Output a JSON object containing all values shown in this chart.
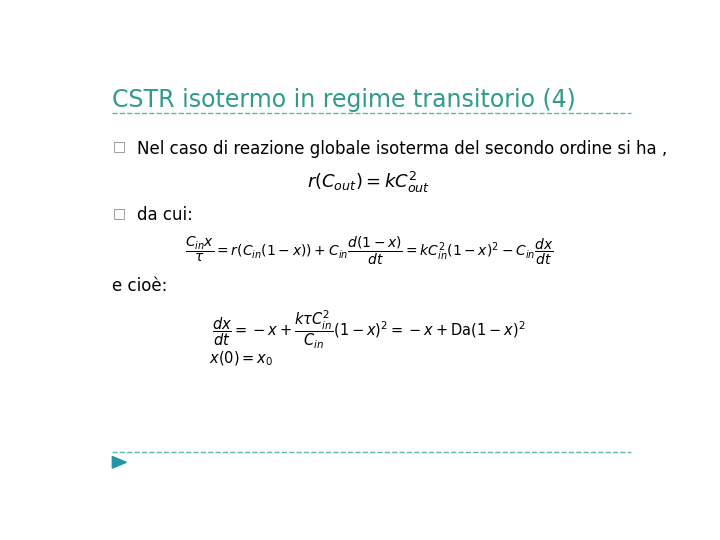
{
  "title": "CSTR isotermo in regime transitorio (4)",
  "title_color": "#2E9B8B",
  "background_color": "#ffffff",
  "line_color": "#5BB8AD",
  "bullet_color": "#888888",
  "text_color": "#000000",
  "arrow_color": "#2196A6",
  "bullet1_text": "Nel caso di reazione globale isoterma del secondo ordine si ha ,",
  "bullet2_text": "da cui:",
  "text3": "e cioè:",
  "formula1": "$r\\left(C_{out}\\right)=kC_{out}^{2}$",
  "formula2": "$\\dfrac{C_{in}x}{\\tau}=r\\left(C_{in}\\left(1-x\\right)\\right)+C_{in}\\dfrac{d(1-x)}{dt}=kC_{in}^{2}\\left(1-x\\right)^{2}-C_{in}\\dfrac{dx}{dt}$",
  "formula3a": "$\\dfrac{dx}{dt}=-x+\\dfrac{k\\tau C_{in}^{2}}{C_{in}}\\left(1-x\\right)^{2}=-x+\\mathrm{Da}\\left(1-x\\right)^{2}$",
  "formula3b": "$x(0)=x_0$"
}
